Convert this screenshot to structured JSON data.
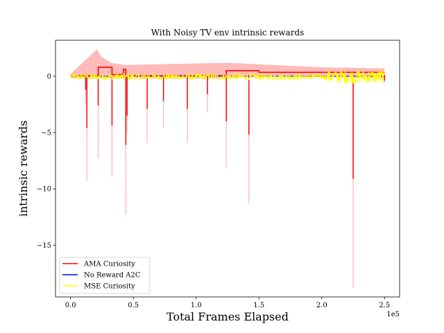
{
  "chart_data": {
    "type": "line",
    "title": "With Noisy TV env intrinsic rewards",
    "xlabel": "Total Frames Elapsed",
    "ylabel": "intrinsic rewards",
    "x_offset_label": "1e5",
    "xlim": [
      -12000,
      262000
    ],
    "ylim": [
      -19.6,
      3.2
    ],
    "xticks": [
      0,
      0.5,
      1.0,
      1.5,
      2.0,
      2.5
    ],
    "xtick_labels": [
      "0.0",
      "0.5",
      "1.0",
      "1.5",
      "2.0",
      "2.5"
    ],
    "yticks": [
      0,
      -5,
      -10,
      -15
    ],
    "ytick_labels": [
      "0",
      "−5",
      "−10",
      "−15"
    ],
    "grid": false,
    "legend_position": "lower-left",
    "series": [
      {
        "name": "AMA Curiosity",
        "color": "#ff0000",
        "band_color": "#ffb3b3",
        "segments": [
          {
            "from": 0,
            "to": 22000,
            "value": 0.05
          },
          {
            "from": 22000,
            "to": 33000,
            "value": 0.8
          },
          {
            "from": 33000,
            "to": 42000,
            "value": 0.15
          },
          {
            "from": 42000,
            "to": 44000,
            "value": 0.6
          },
          {
            "from": 44000,
            "to": 124000,
            "value": 0.05
          },
          {
            "from": 124000,
            "to": 150000,
            "value": 0.5
          },
          {
            "from": 150000,
            "to": 250000,
            "value": 0.35
          }
        ],
        "band_upper": [
          {
            "x": 21000,
            "y": 2.4
          },
          {
            "x": 24000,
            "y": 1.8
          },
          {
            "x": 32000,
            "y": 1.2
          },
          {
            "x": 43000,
            "y": 1.0
          },
          {
            "x": 125000,
            "y": 1.2
          },
          {
            "x": 200000,
            "y": 0.8
          },
          {
            "x": 250000,
            "y": 0.7
          }
        ],
        "spikes": [
          {
            "x": 12000,
            "value": -1.2,
            "band": -2.5
          },
          {
            "x": 13000,
            "value": -4.6,
            "band": -9.3
          },
          {
            "x": 22000,
            "value": -2.6,
            "band": -7.3
          },
          {
            "x": 33000,
            "value": -4.4,
            "band": -8.9
          },
          {
            "x": 44000,
            "value": -6.1,
            "band": -12.3
          },
          {
            "x": 45000,
            "value": -3.5,
            "band": -5.0
          },
          {
            "x": 61000,
            "value": -2.9,
            "band": -5.9
          },
          {
            "x": 74000,
            "value": -2.2,
            "band": -4.6
          },
          {
            "x": 93000,
            "value": -2.9,
            "band": -5.9
          },
          {
            "x": 109000,
            "value": -1.6,
            "band": -3.2
          },
          {
            "x": 124000,
            "value": -4.0,
            "band": -8.1
          },
          {
            "x": 142000,
            "value": -5.2,
            "band": -11.3
          },
          {
            "x": 225000,
            "value": -9.1,
            "band": -18.8
          },
          {
            "x": 250000,
            "value": -0.4,
            "band": -0.6
          }
        ]
      },
      {
        "name": "No Reward A2C",
        "color": "#0000ff",
        "value": 0.0,
        "range": [
          0,
          250000
        ]
      },
      {
        "name": "MSE Curiosity",
        "color": "#ffff00",
        "value": -0.05,
        "noise": 0.25,
        "noise_late": 0.6,
        "noise_late_from": 205000,
        "range": [
          0,
          250000
        ]
      }
    ]
  }
}
